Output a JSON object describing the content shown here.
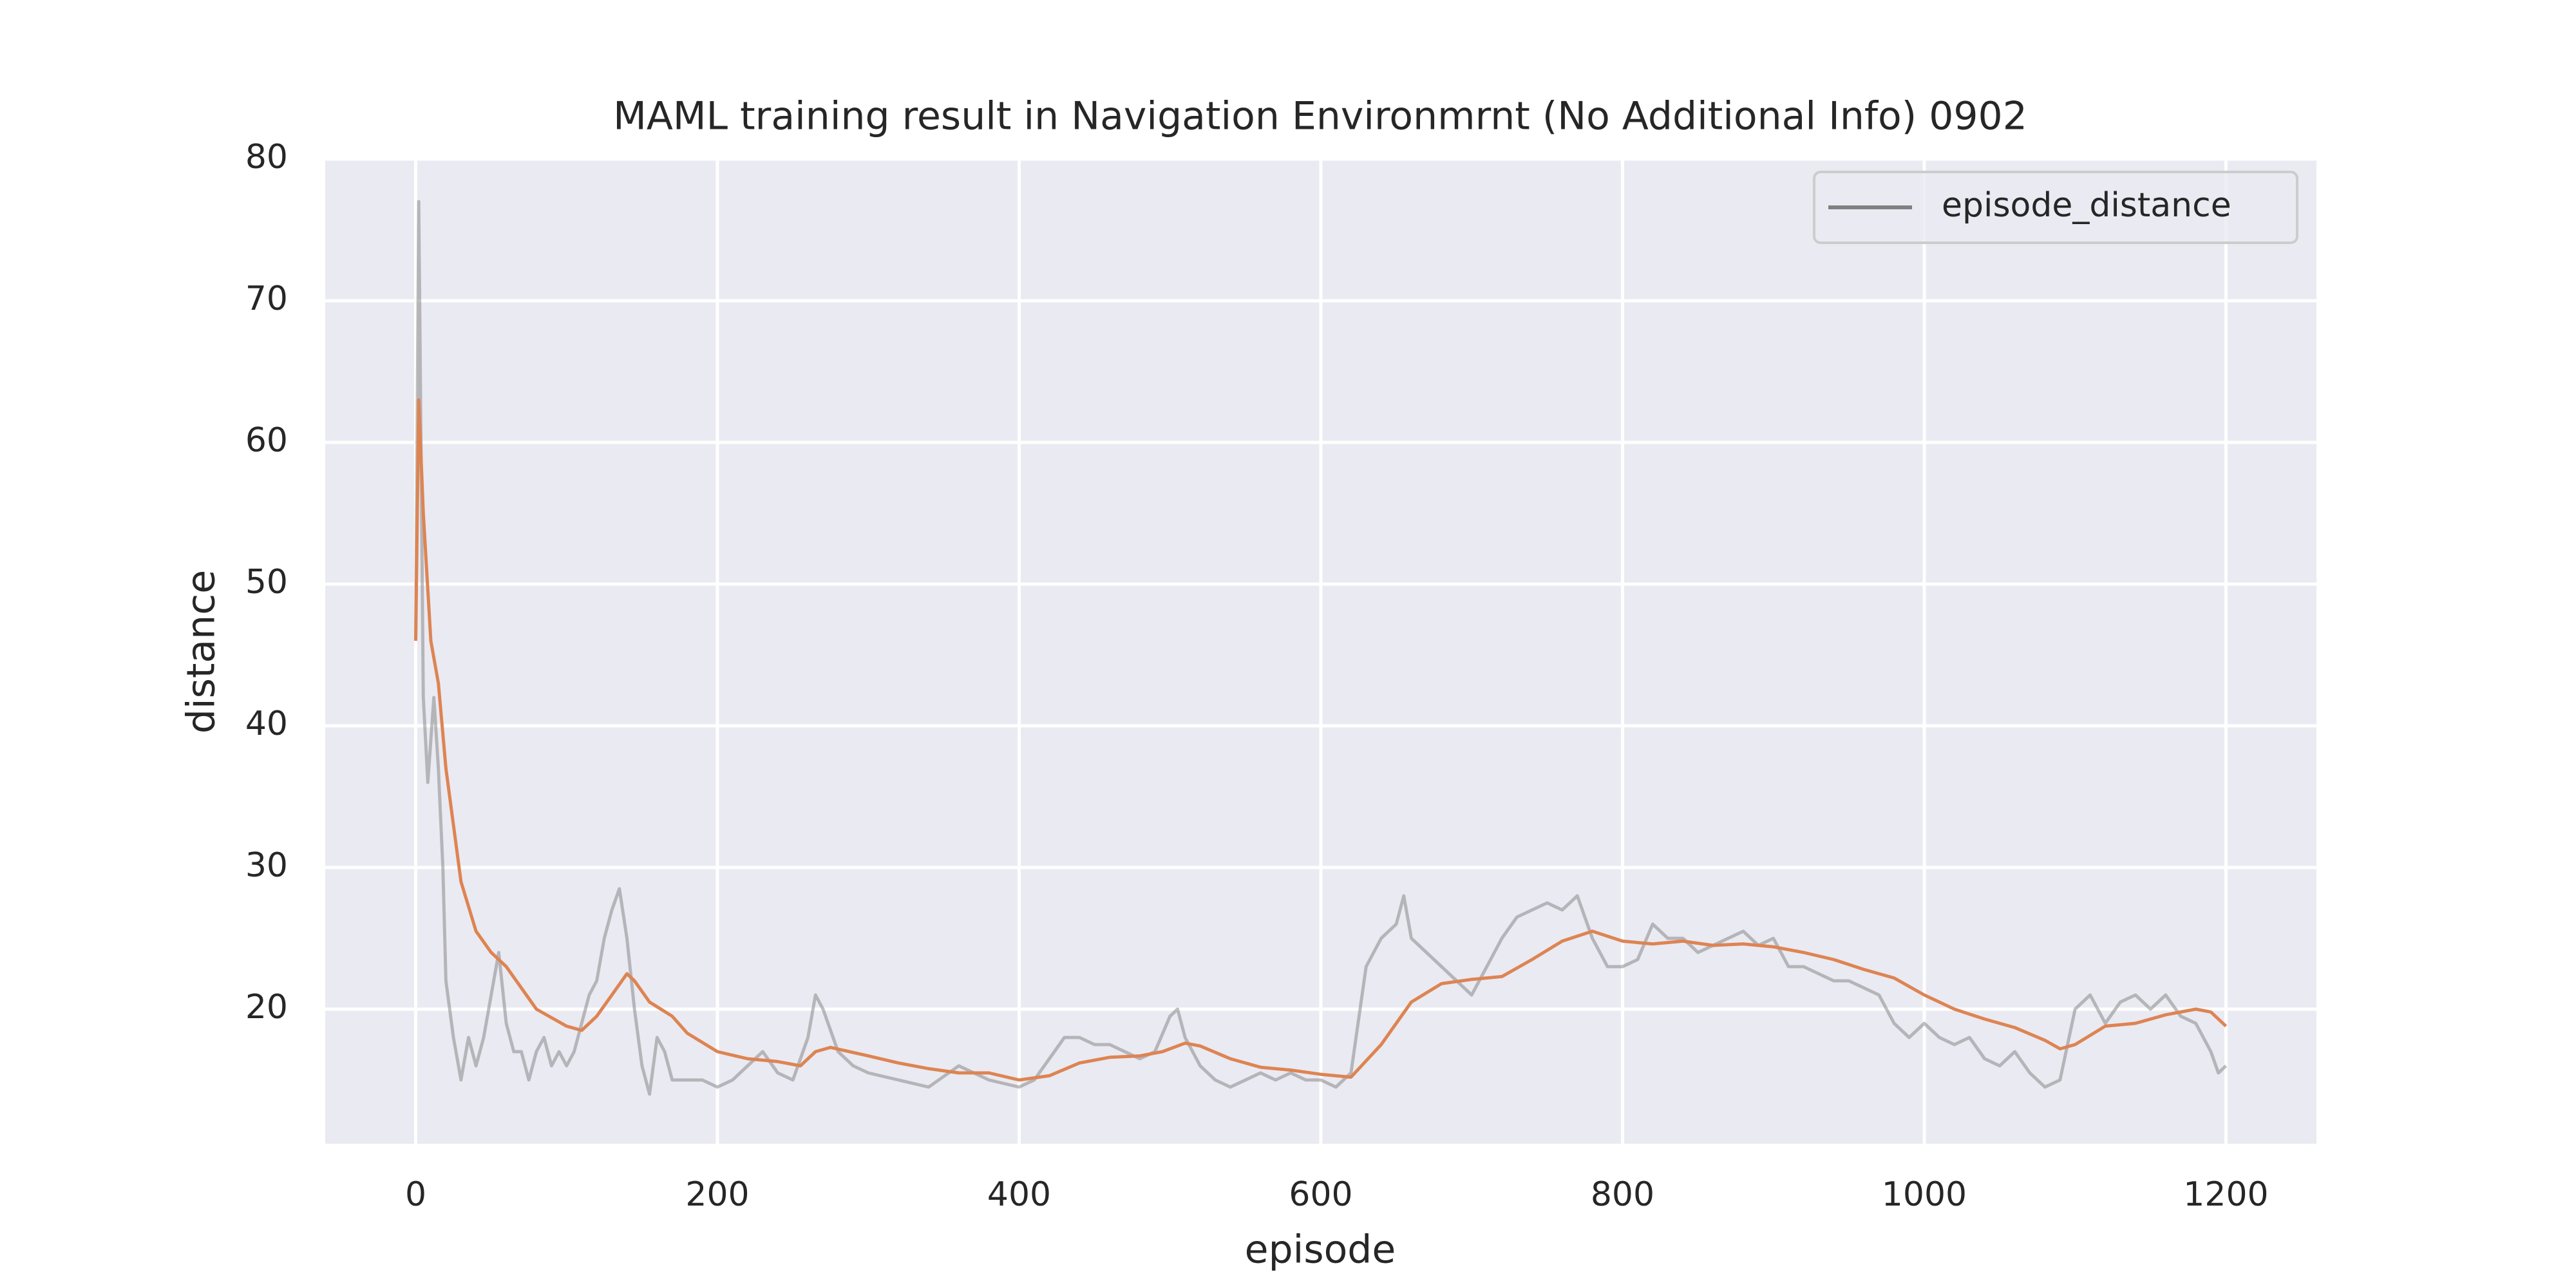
{
  "chart_data": {
    "type": "line",
    "title": "MAML training result in Navigation Environmrnt (No Additional Info) 0902",
    "xlabel": "episode",
    "ylabel": "distance",
    "xlim": [
      -60,
      1260
    ],
    "ylim": [
      10.5,
      80
    ],
    "xticks": [
      0,
      200,
      400,
      600,
      800,
      1000,
      1200
    ],
    "yticks": [
      20,
      30,
      40,
      50,
      60,
      70,
      80
    ],
    "grid": true,
    "legend": "upper right",
    "background": "#eaeaf2",
    "series": [
      {
        "name": "episode_distance",
        "color": "#808080",
        "opacity": 0.5,
        "x": [
          0,
          2,
          5,
          8,
          12,
          15,
          18,
          20,
          25,
          30,
          35,
          40,
          45,
          50,
          55,
          60,
          65,
          70,
          75,
          80,
          85,
          90,
          95,
          100,
          105,
          110,
          115,
          120,
          125,
          130,
          135,
          140,
          145,
          150,
          155,
          160,
          165,
          170,
          180,
          190,
          200,
          210,
          220,
          230,
          240,
          250,
          260,
          265,
          270,
          280,
          290,
          300,
          320,
          340,
          360,
          370,
          380,
          400,
          410,
          420,
          430,
          440,
          450,
          460,
          470,
          480,
          490,
          500,
          505,
          510,
          520,
          530,
          540,
          550,
          560,
          570,
          580,
          590,
          600,
          610,
          620,
          630,
          640,
          650,
          655,
          660,
          670,
          680,
          690,
          700,
          710,
          720,
          730,
          740,
          750,
          760,
          770,
          780,
          790,
          800,
          810,
          820,
          830,
          840,
          850,
          860,
          870,
          880,
          890,
          900,
          910,
          920,
          930,
          940,
          950,
          960,
          970,
          980,
          990,
          1000,
          1010,
          1020,
          1030,
          1040,
          1050,
          1060,
          1070,
          1080,
          1090,
          1100,
          1110,
          1120,
          1130,
          1140,
          1150,
          1160,
          1170,
          1180,
          1190,
          1195,
          1200
        ],
        "values": [
          46,
          77,
          42,
          36,
          42,
          37,
          30,
          22,
          18,
          15,
          18,
          16,
          18,
          21,
          24,
          19,
          17,
          17,
          15,
          17,
          18,
          16,
          17,
          16,
          17,
          19,
          21,
          22,
          25,
          27,
          28.5,
          25,
          20,
          16,
          14,
          18,
          17,
          15,
          15,
          15,
          14.5,
          15,
          16,
          17,
          15.5,
          15,
          18,
          21,
          20,
          17,
          16,
          15.5,
          15,
          14.5,
          16,
          15.5,
          15,
          14.5,
          15,
          16.5,
          18,
          18,
          17.5,
          17.5,
          17,
          16.5,
          17,
          19.5,
          20,
          18,
          16,
          15,
          14.5,
          15,
          15.5,
          15,
          15.5,
          15,
          15,
          14.5,
          15.5,
          23,
          25,
          26,
          28,
          25,
          24,
          23,
          22,
          21,
          23,
          25,
          26.5,
          27,
          27.5,
          27,
          28,
          25,
          23,
          23,
          23.5,
          26,
          25,
          25,
          24,
          24.5,
          25,
          25.5,
          24.5,
          25,
          23,
          23,
          22.5,
          22,
          22,
          21.5,
          21,
          19,
          18,
          19,
          18,
          17.5,
          18,
          16.5,
          16,
          17,
          15.5,
          14.5,
          15,
          20,
          21,
          19,
          20.5,
          21,
          20,
          21,
          19.5,
          19,
          17,
          15.5,
          16
        ]
      },
      {
        "color": "#dd8452",
        "x": [
          0,
          2,
          5,
          10,
          15,
          20,
          25,
          30,
          40,
          50,
          60,
          70,
          80,
          100,
          110,
          120,
          130,
          140,
          145,
          155,
          170,
          180,
          200,
          220,
          240,
          255,
          265,
          275,
          300,
          320,
          340,
          360,
          380,
          400,
          420,
          440,
          460,
          480,
          495,
          510,
          520,
          540,
          560,
          580,
          600,
          620,
          640,
          660,
          680,
          700,
          720,
          740,
          760,
          780,
          800,
          820,
          840,
          860,
          880,
          900,
          920,
          940,
          960,
          980,
          1000,
          1020,
          1040,
          1060,
          1080,
          1090,
          1100,
          1120,
          1140,
          1160,
          1180,
          1190,
          1200
        ],
        "values": [
          46,
          63,
          55,
          46,
          43,
          37,
          33,
          29,
          25.5,
          24,
          23,
          21.5,
          20,
          18.8,
          18.5,
          19.5,
          21,
          22.5,
          22,
          20.5,
          19.5,
          18.3,
          17,
          16.5,
          16.3,
          16,
          17,
          17.3,
          16.7,
          16.2,
          15.8,
          15.5,
          15.5,
          15,
          15.3,
          16.2,
          16.6,
          16.7,
          17,
          17.6,
          17.4,
          16.5,
          15.9,
          15.7,
          15.4,
          15.2,
          17.5,
          20.5,
          21.8,
          22.1,
          22.3,
          23.5,
          24.8,
          25.5,
          24.8,
          24.6,
          24.8,
          24.5,
          24.6,
          24.4,
          24,
          23.5,
          22.8,
          22.2,
          21,
          20,
          19.3,
          18.7,
          17.8,
          17.2,
          17.5,
          18.8,
          19,
          19.6,
          20,
          19.8,
          18.8
        ]
      }
    ]
  }
}
